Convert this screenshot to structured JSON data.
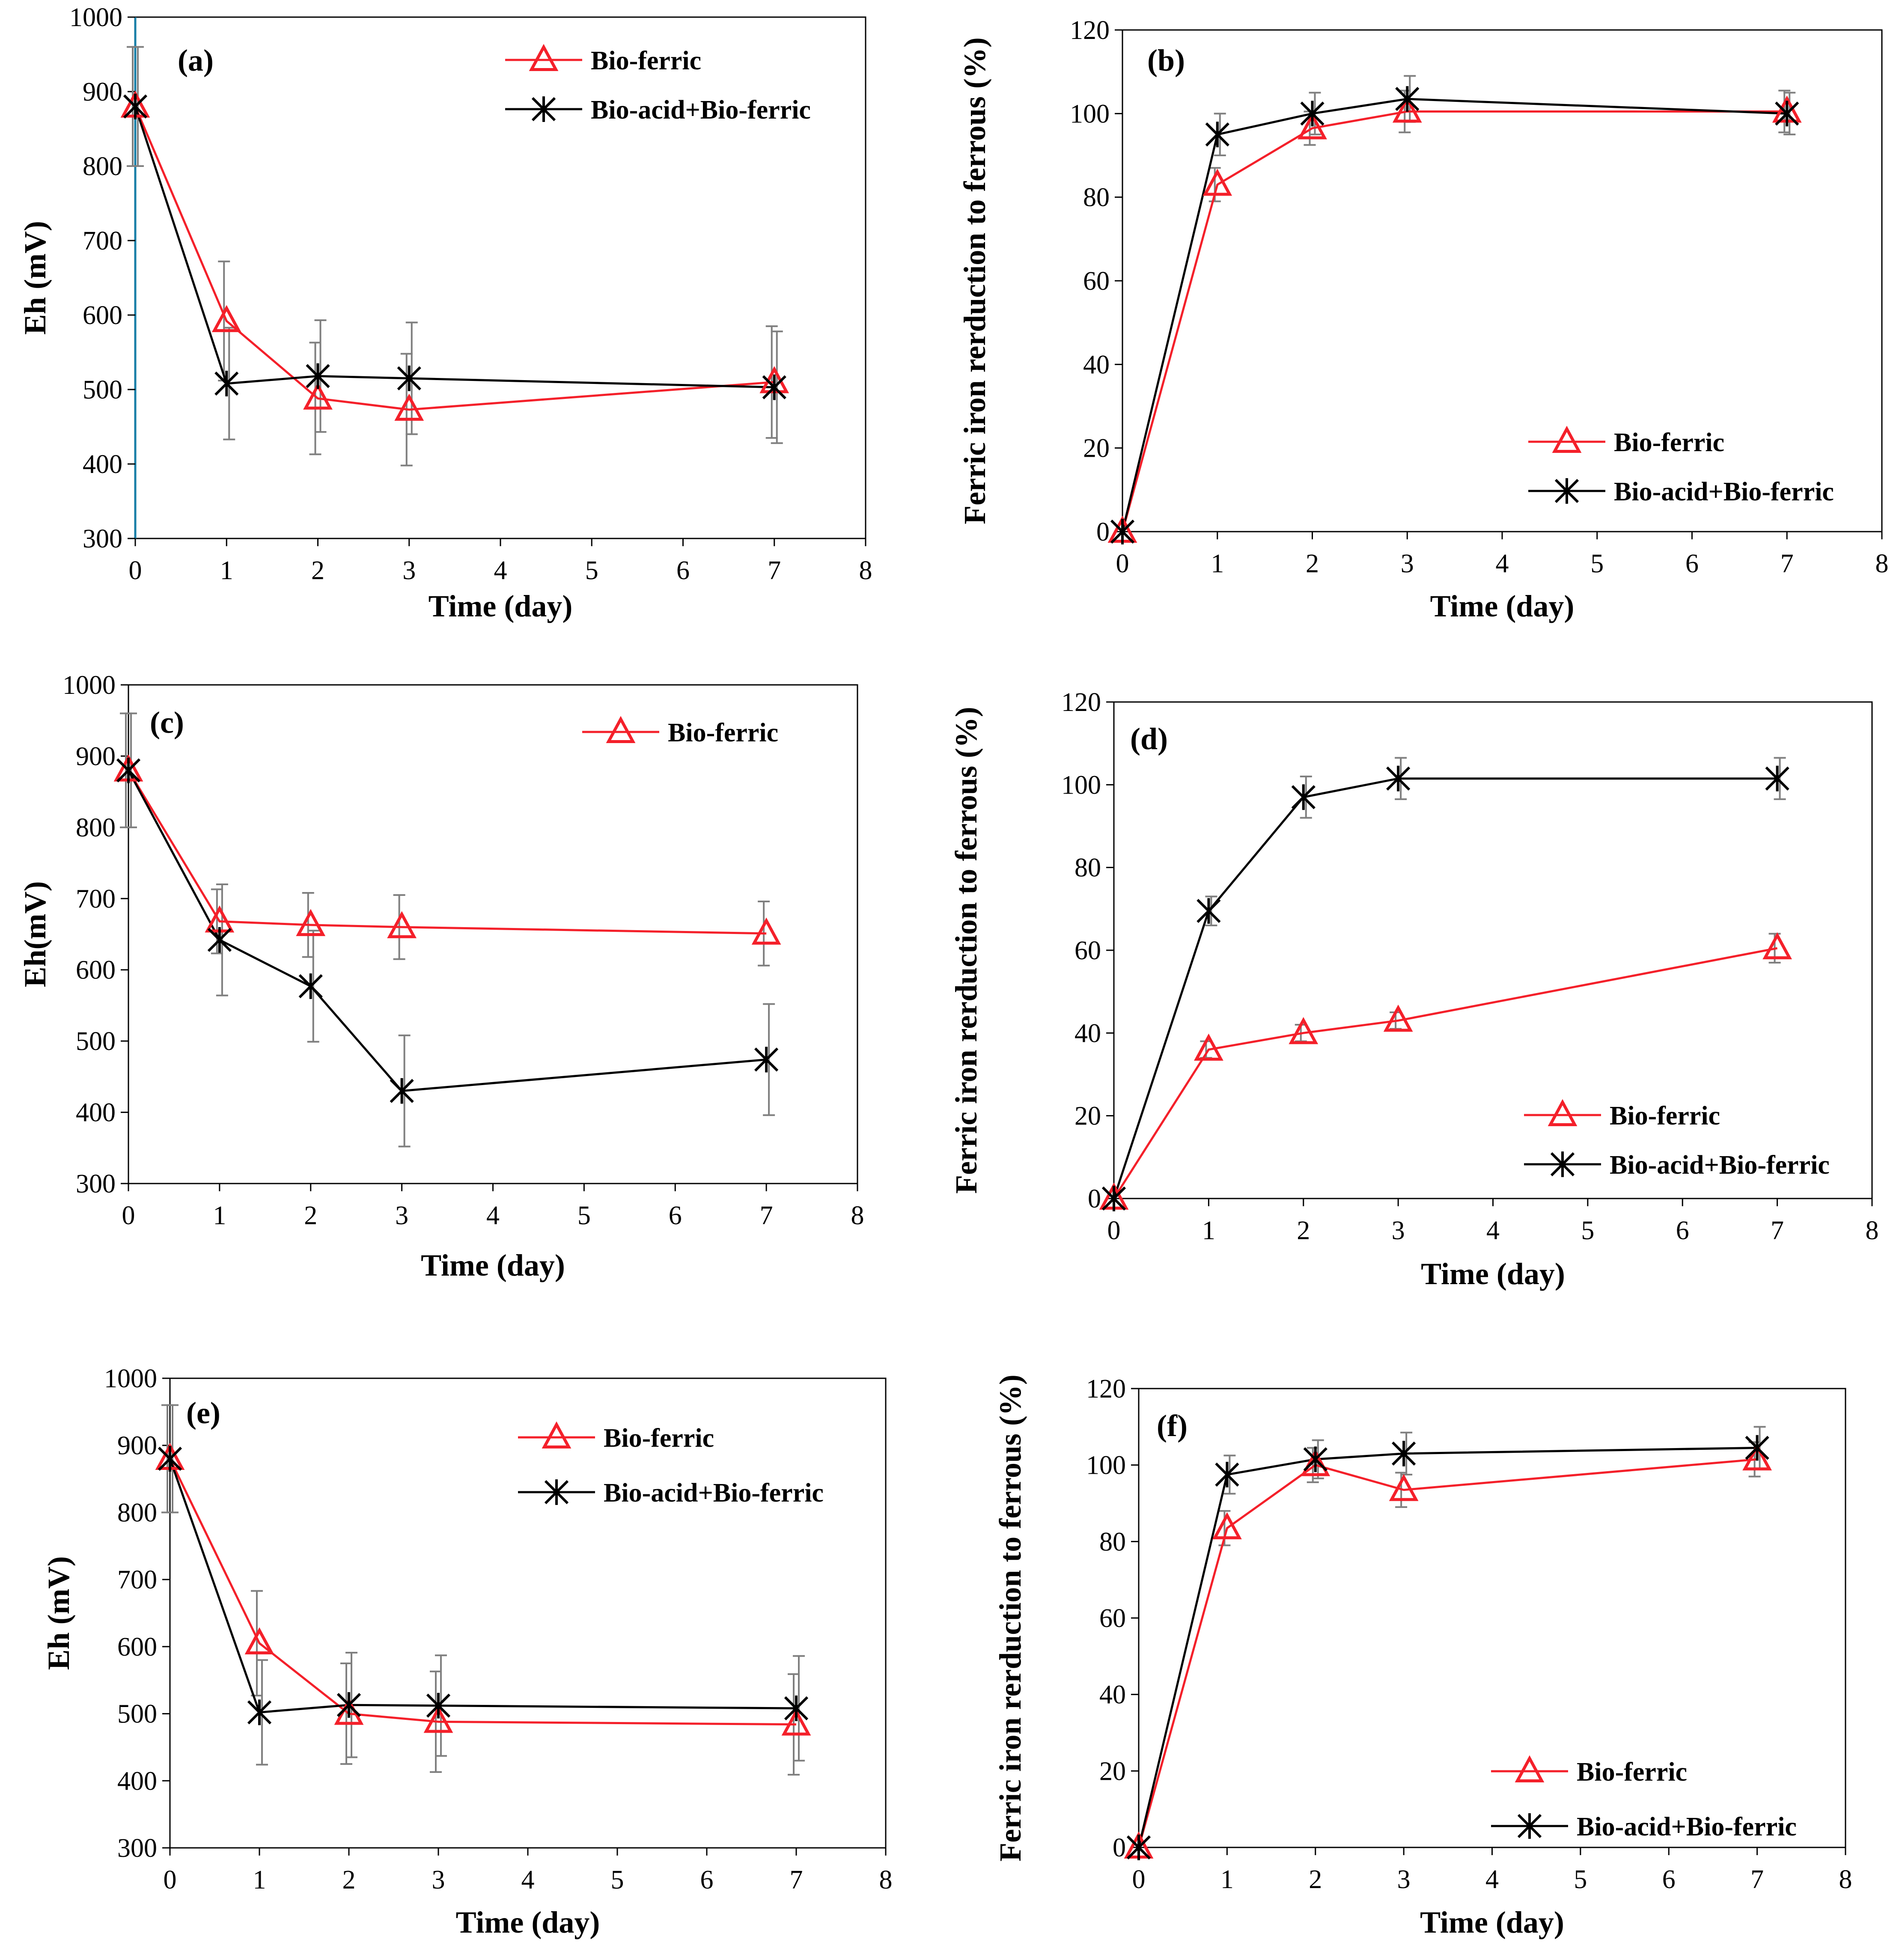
{
  "figure": {
    "colors": {
      "bio_ferric": "#f4202a",
      "bio_acid_bio_ferric": "#000000",
      "error_bar": "#7f7f7f",
      "axis": "#000000",
      "axis_accent": "#1a7fa8"
    }
  },
  "chart_data": [
    {
      "id": "a",
      "panel_label": "(a)",
      "type": "line",
      "xlabel": "Time (day)",
      "ylabel": "Eh (mV)",
      "xlim": [
        0,
        8
      ],
      "ylim": [
        300,
        1000
      ],
      "x_ticks": [
        "0",
        "1",
        "2",
        "3",
        "4",
        "5",
        "6",
        "7",
        "8"
      ],
      "y_ticks": [
        "300",
        "400",
        "500",
        "600",
        "700",
        "800",
        "900",
        "1000"
      ],
      "legend": [
        "Bio-ferric",
        "Bio-acid+Bio-ferric"
      ],
      "series": [
        {
          "name": "Bio-ferric",
          "marker": "triangle",
          "x": [
            0,
            1,
            2,
            3,
            7
          ],
          "y": [
            880,
            592,
            488,
            473,
            510
          ],
          "err": [
            80,
            80,
            75,
            75,
            75
          ]
        },
        {
          "name": "Bio-acid+Bio-ferric",
          "marker": "star",
          "x": [
            0,
            1,
            2,
            3,
            7
          ],
          "y": [
            880,
            508,
            518,
            515,
            503
          ],
          "err": [
            80,
            75,
            75,
            75,
            75
          ]
        }
      ]
    },
    {
      "id": "b",
      "panel_label": "(b)",
      "type": "line",
      "xlabel": "Time (day)",
      "ylabel": "Ferric iron rerduction to ferrous (%)",
      "xlim": [
        0,
        8
      ],
      "ylim": [
        0,
        120
      ],
      "x_ticks": [
        "0",
        "1",
        "2",
        "3",
        "4",
        "5",
        "6",
        "7",
        "8"
      ],
      "y_ticks": [
        "0",
        "20",
        "40",
        "60",
        "80",
        "100",
        "120"
      ],
      "legend": [
        "Bio-ferric",
        "Bio-acid+Bio-ferric"
      ],
      "series": [
        {
          "name": "Bio-ferric",
          "marker": "triangle",
          "x": [
            0,
            1,
            2,
            3,
            7
          ],
          "y": [
            0,
            83,
            96.5,
            100.5,
            100.5
          ],
          "err": [
            0,
            4,
            4,
            5,
            5
          ]
        },
        {
          "name": "Bio-acid+Bio-ferric",
          "marker": "star",
          "x": [
            0,
            1,
            2,
            3,
            7
          ],
          "y": [
            0,
            95,
            100,
            103.5,
            100
          ],
          "err": [
            0,
            5,
            5,
            5.5,
            5
          ]
        }
      ]
    },
    {
      "id": "c",
      "panel_label": "(c)",
      "type": "line",
      "xlabel": "Time (day)",
      "ylabel": "Eh(mV)",
      "xlim": [
        0,
        8
      ],
      "ylim": [
        300,
        1000
      ],
      "x_ticks": [
        "0",
        "1",
        "2",
        "3",
        "4",
        "5",
        "6",
        "7",
        "8"
      ],
      "y_ticks": [
        "300",
        "400",
        "500",
        "600",
        "700",
        "800",
        "900",
        "1000"
      ],
      "legend": [
        "Bio-ferric"
      ],
      "series": [
        {
          "name": "Bio-ferric",
          "marker": "triangle",
          "x": [
            0,
            1,
            2,
            3,
            7
          ],
          "y": [
            880,
            668,
            663,
            660,
            651
          ],
          "err": [
            80,
            45,
            45,
            45,
            45
          ]
        },
        {
          "name": "Bio-acid+Bio-ferric",
          "marker": "star",
          "x": [
            0,
            1,
            2,
            3,
            7
          ],
          "y": [
            880,
            642,
            577,
            430,
            474
          ],
          "err": [
            80,
            78,
            78,
            78,
            78
          ]
        }
      ]
    },
    {
      "id": "d",
      "panel_label": "(d)",
      "type": "line",
      "xlabel": "Time (day)",
      "ylabel": "Ferric iron rerduction to ferrous (%)",
      "xlim": [
        0,
        8
      ],
      "ylim": [
        0,
        120
      ],
      "x_ticks": [
        "0",
        "1",
        "2",
        "3",
        "4",
        "5",
        "6",
        "7",
        "8"
      ],
      "y_ticks": [
        "0",
        "20",
        "40",
        "60",
        "80",
        "100",
        "120"
      ],
      "legend": [
        "Bio-ferric",
        "Bio-acid+Bio-ferric"
      ],
      "series": [
        {
          "name": "Bio-ferric",
          "marker": "triangle",
          "x": [
            0,
            1,
            2,
            3,
            7
          ],
          "y": [
            0,
            36,
            40,
            43,
            60.5
          ],
          "err": [
            0,
            2,
            2,
            2,
            3.5
          ]
        },
        {
          "name": "Bio-acid+Bio-ferric",
          "marker": "star",
          "x": [
            0,
            1,
            2,
            3,
            7
          ],
          "y": [
            0,
            69.5,
            97,
            101.5,
            101.5
          ],
          "err": [
            0,
            3.5,
            5,
            5,
            5
          ]
        }
      ]
    },
    {
      "id": "e",
      "panel_label": "(e)",
      "type": "line",
      "xlabel": "Time (day)",
      "ylabel": "Eh (mV)",
      "xlim": [
        0,
        8
      ],
      "ylim": [
        300,
        1000
      ],
      "x_ticks": [
        "0",
        "1",
        "2",
        "3",
        "4",
        "5",
        "6",
        "7",
        "8"
      ],
      "y_ticks": [
        "300",
        "400",
        "500",
        "600",
        "700",
        "800",
        "900",
        "1000"
      ],
      "legend": [
        "Bio-ferric",
        "Bio-acid+Bio-ferric"
      ],
      "series": [
        {
          "name": "Bio-ferric",
          "marker": "triangle",
          "x": [
            0,
            1,
            2,
            3,
            7
          ],
          "y": [
            880,
            605,
            500,
            488,
            484
          ],
          "err": [
            80,
            78,
            75,
            75,
            75
          ]
        },
        {
          "name": "Bio-acid+Bio-ferric",
          "marker": "star",
          "x": [
            0,
            1,
            2,
            3,
            7
          ],
          "y": [
            880,
            502,
            513,
            512,
            508
          ],
          "err": [
            80,
            78,
            78,
            75,
            78
          ]
        }
      ]
    },
    {
      "id": "f",
      "panel_label": "(f)",
      "type": "line",
      "xlabel": "Time (day)",
      "ylabel": "Ferric iron rerduction to ferrous (%)",
      "xlim": [
        0,
        8
      ],
      "ylim": [
        0,
        120
      ],
      "x_ticks": [
        "0",
        "1",
        "2",
        "3",
        "4",
        "5",
        "6",
        "7",
        "8"
      ],
      "y_ticks": [
        "0",
        "20",
        "40",
        "60",
        "80",
        "100",
        "120"
      ],
      "legend": [
        "Bio-ferric",
        "Bio-acid+Bio-ferric"
      ],
      "series": [
        {
          "name": "Bio-ferric",
          "marker": "triangle",
          "x": [
            0,
            1,
            2,
            3,
            7
          ],
          "y": [
            0,
            83.5,
            100,
            93.5,
            101.5
          ],
          "err": [
            0,
            4.5,
            4.5,
            4.5,
            4.5
          ]
        },
        {
          "name": "Bio-acid+Bio-ferric",
          "marker": "star",
          "x": [
            0,
            1,
            2,
            3,
            7
          ],
          "y": [
            0,
            97.5,
            101.5,
            103,
            104.5
          ],
          "err": [
            0,
            5,
            5,
            5.5,
            5.5
          ]
        }
      ]
    }
  ]
}
